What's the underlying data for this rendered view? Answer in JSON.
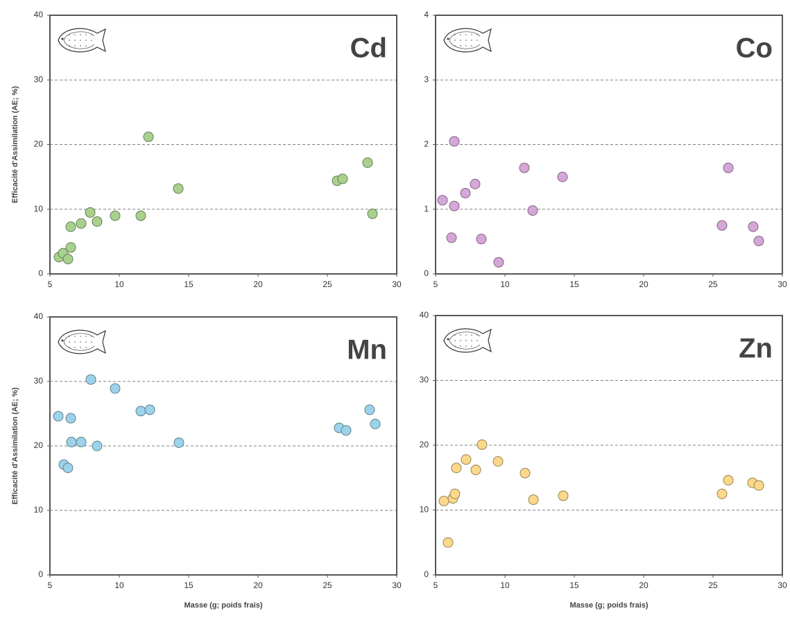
{
  "chart_data": [
    {
      "type": "scatter",
      "title": "Cd",
      "ylabel": "Efficacité d'Assimilation (AE; %)",
      "xlim": [
        5,
        30
      ],
      "xticks": [
        5,
        10,
        15,
        20,
        25,
        30
      ],
      "ylim": [
        0,
        40
      ],
      "yticks": [
        0,
        10,
        20,
        30,
        40
      ],
      "grid": true,
      "series": [
        {
          "color": "#a9d18e",
          "x": [
            5.65,
            5.95,
            6.3,
            6.5,
            6.5,
            7.25,
            7.9,
            8.4,
            9.7,
            11.55,
            12.1,
            14.25,
            25.7,
            26.1,
            27.9,
            28.25
          ],
          "values": [
            2.6,
            3.2,
            2.3,
            4.1,
            7.3,
            7.8,
            9.5,
            8.1,
            9.0,
            9.0,
            21.2,
            13.2,
            14.4,
            14.7,
            17.2,
            9.3
          ]
        }
      ]
    },
    {
      "type": "scatter",
      "title": "Co",
      "xlim": [
        5,
        30
      ],
      "xticks": [
        5,
        10,
        15,
        20,
        25,
        30
      ],
      "ylim": [
        0,
        4
      ],
      "yticks": [
        0,
        1,
        2,
        3,
        4
      ],
      "grid": true,
      "series": [
        {
          "color": "#d5a6d8",
          "x": [
            5.5,
            6.15,
            6.35,
            6.35,
            7.15,
            7.85,
            8.3,
            9.55,
            11.4,
            12.0,
            14.15,
            25.65,
            26.1,
            27.9,
            28.3
          ],
          "values": [
            1.14,
            0.56,
            2.05,
            1.05,
            1.25,
            1.39,
            0.54,
            0.18,
            1.64,
            0.98,
            1.5,
            0.75,
            1.64,
            0.73,
            0.51
          ]
        }
      ]
    },
    {
      "type": "scatter",
      "title": "Mn",
      "ylabel": "Efficacité d'Assimilation (AE; %)",
      "xlabel": "Masse (g; poids frais)",
      "xlim": [
        5,
        30
      ],
      "xticks": [
        5,
        10,
        15,
        20,
        25,
        30
      ],
      "ylim": [
        0,
        40
      ],
      "yticks": [
        0,
        10,
        20,
        30,
        40
      ],
      "grid": true,
      "series": [
        {
          "color": "#9dd3ea",
          "x": [
            5.6,
            6.0,
            6.3,
            6.5,
            6.55,
            7.25,
            7.95,
            8.4,
            9.7,
            11.55,
            12.2,
            14.3,
            25.85,
            26.35,
            28.05,
            28.45
          ],
          "values": [
            24.6,
            17.1,
            16.6,
            24.3,
            20.6,
            20.6,
            30.3,
            20.0,
            28.9,
            25.4,
            25.6,
            20.5,
            22.8,
            22.4,
            25.6,
            23.4
          ]
        }
      ]
    },
    {
      "type": "scatter",
      "title": "Zn",
      "xlabel": "Masse (g; poids frais)",
      "xlim": [
        5,
        30
      ],
      "xticks": [
        5,
        10,
        15,
        20,
        25,
        30
      ],
      "ylim": [
        0,
        40
      ],
      "yticks": [
        0,
        10,
        20,
        30,
        40
      ],
      "grid": true,
      "series": [
        {
          "color": "#fbd88a",
          "x": [
            5.6,
            5.9,
            6.25,
            6.4,
            6.5,
            7.2,
            7.9,
            8.35,
            9.5,
            11.45,
            12.05,
            14.2,
            25.65,
            26.1,
            27.85,
            28.3
          ],
          "values": [
            11.4,
            5.0,
            11.8,
            12.5,
            16.5,
            17.8,
            16.2,
            20.1,
            17.5,
            15.7,
            11.6,
            12.2,
            12.5,
            14.6,
            14.2,
            13.8
          ]
        }
      ]
    }
  ]
}
